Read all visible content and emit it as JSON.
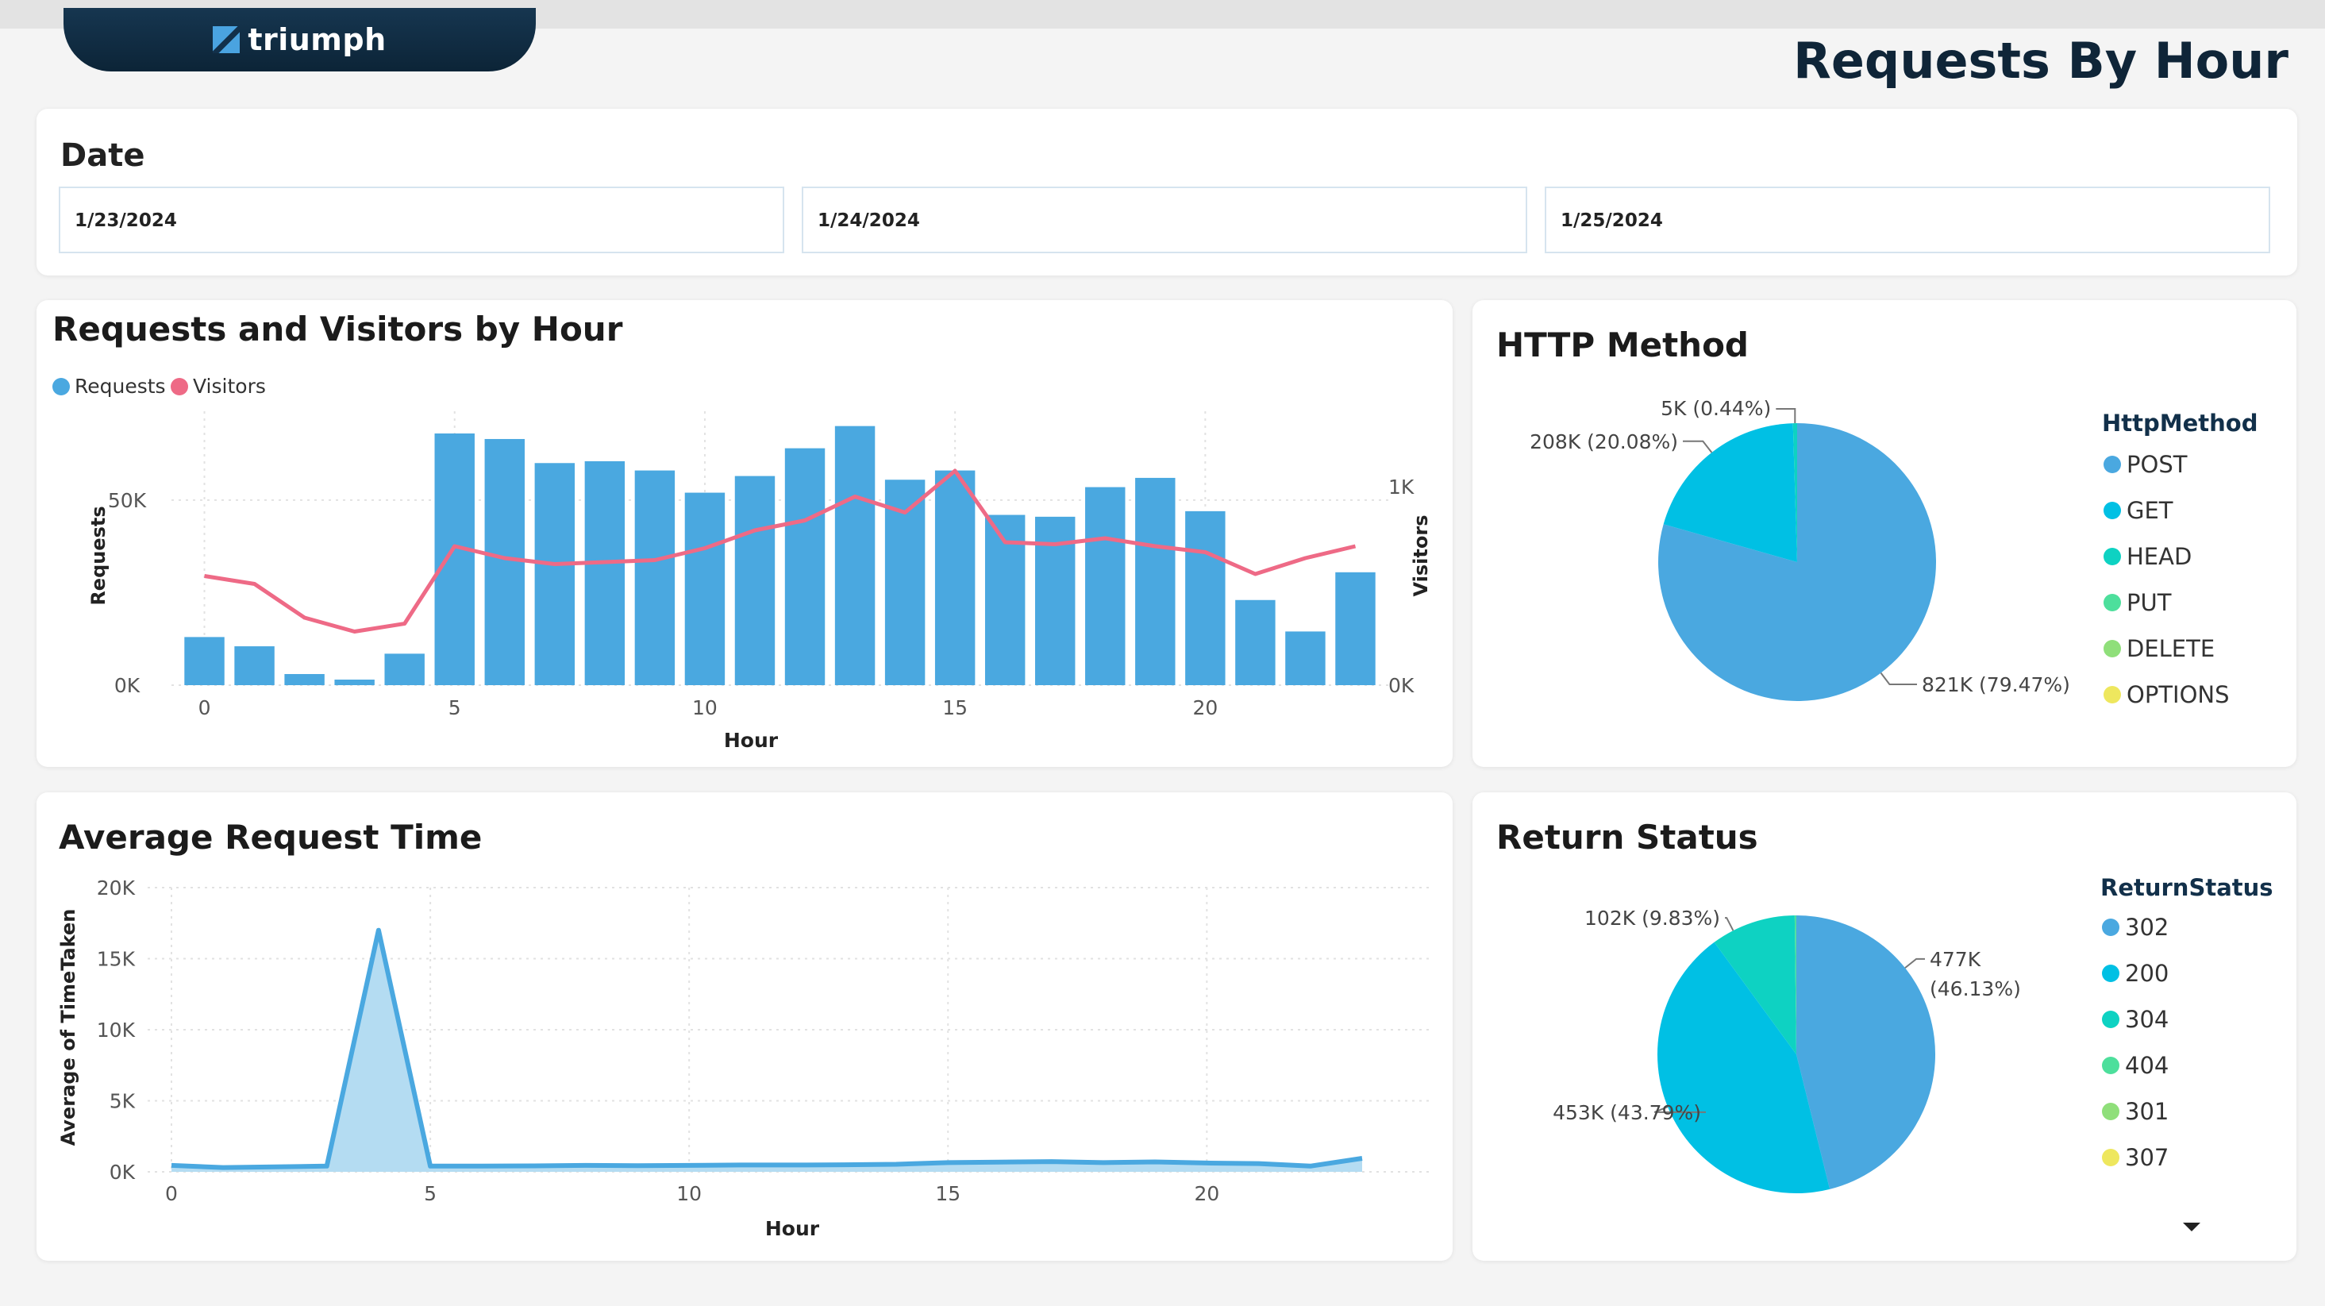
{
  "header": {
    "brand": "triumph",
    "page_title": "Requests By Hour"
  },
  "date_filter": {
    "label": "Date",
    "dates": [
      "1/23/2024",
      "1/24/2024",
      "1/25/2024"
    ]
  },
  "colors": {
    "requests": "#4aa8e0",
    "visitors": "#ee6a86",
    "area_line": "#4aa8e0",
    "area_fill": "#b4dcf2",
    "pie": [
      "#4aa8e0",
      "#00c0e4",
      "#0ed2c2",
      "#4ddf9c",
      "#8fdf7a",
      "#eee75e"
    ]
  },
  "chart_data": [
    {
      "id": "requests_visitors",
      "type": "bar",
      "title": "Requests and Visitors by Hour",
      "xlabel": "Hour",
      "ylabel": "Requests",
      "y2label": "Visitors",
      "legend": [
        "Requests",
        "Visitors"
      ],
      "legend_position": "top-left",
      "x": [
        0,
        1,
        2,
        3,
        4,
        5,
        6,
        7,
        8,
        9,
        10,
        11,
        12,
        13,
        14,
        15,
        16,
        17,
        18,
        19,
        20,
        21,
        22,
        23
      ],
      "xticks": [
        0,
        5,
        10,
        15,
        20
      ],
      "ylim": [
        0,
        74000
      ],
      "yticks": [
        {
          "v": 0,
          "label": "0K"
        },
        {
          "v": 50000,
          "label": "50K"
        }
      ],
      "y2lim": [
        0,
        1380
      ],
      "y2ticks": [
        {
          "v": 0,
          "label": "0K"
        },
        {
          "v": 1000,
          "label": "1K"
        }
      ],
      "series": [
        {
          "name": "Requests",
          "axis": "left",
          "values": [
            13000,
            10500,
            3000,
            1500,
            8500,
            68000,
            66500,
            60000,
            60500,
            58000,
            52000,
            56500,
            64000,
            70000,
            55500,
            58000,
            46000,
            45500,
            53500,
            56000,
            47000,
            23000,
            14500,
            30500
          ]
        },
        {
          "name": "Visitors",
          "axis": "right",
          "values": [
            550,
            510,
            340,
            270,
            310,
            700,
            640,
            610,
            620,
            630,
            690,
            780,
            830,
            950,
            870,
            1080,
            720,
            710,
            740,
            700,
            670,
            560,
            640,
            700
          ]
        }
      ],
      "grid": true
    },
    {
      "id": "http_method",
      "type": "pie",
      "title": "HTTP Method",
      "legend_title": "HttpMethod",
      "legend": [
        "POST",
        "GET",
        "HEAD",
        "PUT",
        "DELETE",
        "OPTIONS"
      ],
      "legend_position": "right",
      "slices": [
        {
          "name": "POST",
          "value": 821,
          "label": "821K (79.47%)"
        },
        {
          "name": "GET",
          "value": 208,
          "label": "208K (20.08%)"
        },
        {
          "name": "HEAD",
          "value": 5,
          "label": "5K (0.44%)"
        }
      ]
    },
    {
      "id": "avg_request_time",
      "type": "area",
      "title": "Average Request Time",
      "xlabel": "Hour",
      "ylabel": "Average of TimeTaken",
      "x": [
        0,
        1,
        2,
        3,
        4,
        5,
        6,
        7,
        8,
        9,
        10,
        11,
        12,
        13,
        14,
        15,
        16,
        17,
        18,
        19,
        20,
        21,
        22,
        23
      ],
      "xticks": [
        0,
        5,
        10,
        15,
        20
      ],
      "ylim": [
        0,
        20000
      ],
      "yticks": [
        {
          "v": 0,
          "label": "0K"
        },
        {
          "v": 5000,
          "label": "5K"
        },
        {
          "v": 10000,
          "label": "10K"
        },
        {
          "v": 15000,
          "label": "15K"
        },
        {
          "v": 20000,
          "label": "20K"
        }
      ],
      "values": [
        450,
        300,
        350,
        400,
        17000,
        400,
        400,
        420,
        450,
        430,
        450,
        480,
        480,
        500,
        530,
        650,
        680,
        720,
        650,
        700,
        620,
        580,
        400,
        950
      ],
      "grid": true
    },
    {
      "id": "return_status",
      "type": "pie",
      "title": "Return Status",
      "legend_title": "ReturnStatus",
      "legend": [
        "302",
        "200",
        "304",
        "404",
        "301",
        "307"
      ],
      "legend_position": "right",
      "slices": [
        {
          "name": "302",
          "value": 477,
          "label_lines": [
            "477K",
            "(46.13%)"
          ]
        },
        {
          "name": "200",
          "value": 453,
          "label_lines": [
            "453K (43.79%)"
          ]
        },
        {
          "name": "304",
          "value": 102,
          "label_lines": [
            "102K (9.83%)"
          ]
        },
        {
          "name": "404",
          "value": 2,
          "label_lines": []
        }
      ]
    }
  ]
}
